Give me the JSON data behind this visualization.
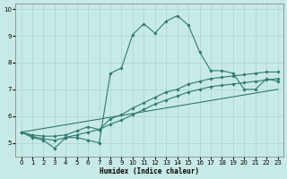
{
  "xlabel": "Humidex (Indice chaleur)",
  "bg_color": "#c8eae6",
  "grid_color": "#b0d8d4",
  "line_color": "#2d7a70",
  "xlim": [
    -0.5,
    23.5
  ],
  "ylim": [
    4.5,
    10.2
  ],
  "yticks": [
    5,
    6,
    7,
    8,
    9,
    10
  ],
  "xticks": [
    0,
    1,
    2,
    3,
    4,
    5,
    6,
    7,
    8,
    9,
    10,
    11,
    12,
    13,
    14,
    15,
    16,
    17,
    18,
    19,
    20,
    21,
    22,
    23
  ],
  "series": [
    {
      "x": [
        0,
        1,
        2,
        3,
        4,
        5,
        6,
        7,
        8,
        9,
        10,
        11,
        12,
        13,
        14,
        15,
        16,
        17,
        18,
        19,
        20,
        21,
        22,
        23
      ],
      "y": [
        5.4,
        5.2,
        5.1,
        4.8,
        5.2,
        5.2,
        5.1,
        5.0,
        7.6,
        7.8,
        9.05,
        9.45,
        9.1,
        9.55,
        9.75,
        9.4,
        8.4,
        7.7,
        7.7,
        7.6,
        7.0,
        7.0,
        7.4,
        7.3
      ],
      "marker": true
    },
    {
      "x": [
        0,
        1,
        2,
        3,
        4,
        5,
        6,
        7,
        8,
        9,
        10,
        11,
        12,
        13,
        14,
        15,
        16,
        17,
        18,
        19,
        20,
        21,
        22,
        23
      ],
      "y": [
        5.4,
        5.3,
        5.25,
        5.25,
        5.3,
        5.45,
        5.6,
        5.5,
        5.9,
        6.05,
        6.3,
        6.5,
        6.7,
        6.9,
        7.0,
        7.2,
        7.3,
        7.4,
        7.45,
        7.5,
        7.55,
        7.6,
        7.65,
        7.65
      ],
      "marker": true
    },
    {
      "x": [
        0,
        1,
        2,
        3,
        4,
        5,
        6,
        7,
        8,
        9,
        10,
        11,
        12,
        13,
        14,
        15,
        16,
        17,
        18,
        19,
        20,
        21,
        22,
        23
      ],
      "y": [
        5.4,
        5.25,
        5.15,
        5.1,
        5.2,
        5.3,
        5.4,
        5.5,
        5.7,
        5.85,
        6.05,
        6.25,
        6.45,
        6.6,
        6.75,
        6.9,
        7.0,
        7.1,
        7.15,
        7.2,
        7.25,
        7.3,
        7.35,
        7.4
      ],
      "marker": true
    },
    {
      "x": [
        0,
        23
      ],
      "y": [
        5.4,
        7.0
      ],
      "marker": false
    }
  ]
}
